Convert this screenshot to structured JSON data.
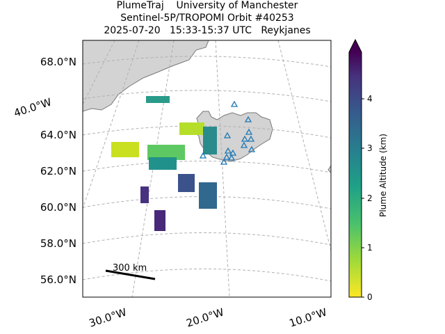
{
  "title": {
    "line1": "PlumeTraj    University of Manchester",
    "line2": "Sentinel-5P/TROPOMI Orbit #40253",
    "line3": "2025-07-20   15:33-15:37 UTC   Reykjanes"
  },
  "map": {
    "lat_labels": [
      "68.0°N",
      "64.0°N",
      "62.0°N",
      "60.0°N",
      "58.0°N",
      "56.0°N"
    ],
    "lon_labels_left": [
      "40.0°W"
    ],
    "lon_labels_bottom": [
      "30.0°W",
      "20.0°W",
      "10.0°W"
    ],
    "scale_bar_label": "300 km",
    "land_color": "#d3d3d3",
    "gridline_color": "#b0b0b0",
    "station_marker_color": "#1f77b4"
  },
  "colorbar": {
    "label": "Plume Altitude (km)",
    "ticks": [
      "0",
      "1",
      "2",
      "3",
      "4"
    ],
    "range_km": [
      0,
      5
    ],
    "extend": "max",
    "colormap": "viridis_r"
  }
}
